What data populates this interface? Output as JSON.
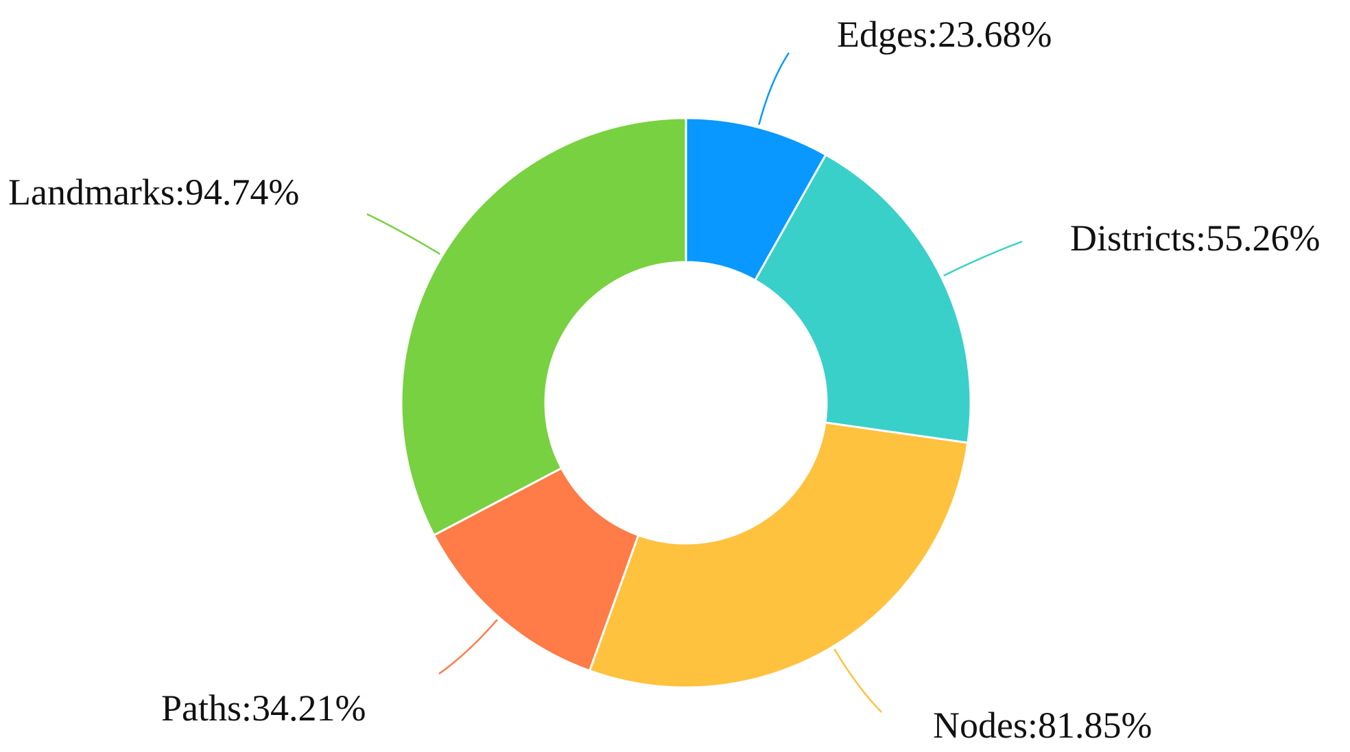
{
  "chart_data": {
    "type": "pie",
    "subtype": "donut",
    "slices": [
      {
        "name": "Edges",
        "label": "Edges:23.68%",
        "value": 23.68,
        "color": "#0898FF"
      },
      {
        "name": "Districts",
        "label": "Districts:55.26%",
        "value": 55.26,
        "color": "#39D0CA"
      },
      {
        "name": "Nodes",
        "label": "Nodes:81.85%",
        "value": 81.85,
        "color": "#FFC23F"
      },
      {
        "name": "Paths",
        "label": "Paths:34.21%",
        "value": 34.21,
        "color": "#FF7B47"
      },
      {
        "name": "Landmarks",
        "label": "Landmarks:94.74%",
        "value": 94.74,
        "color": "#78D140"
      }
    ],
    "legend": "none"
  }
}
